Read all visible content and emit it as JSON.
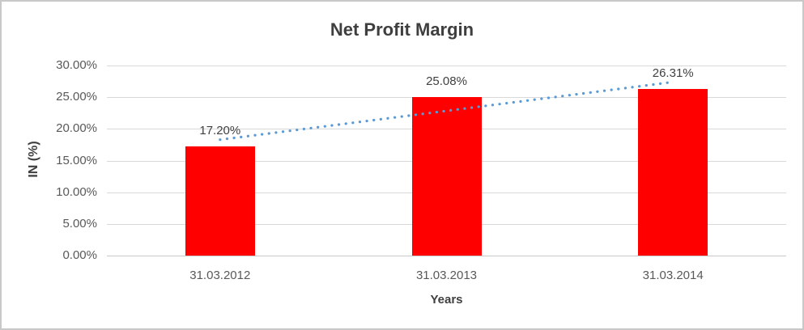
{
  "chart_data": {
    "type": "bar",
    "title": "Net Profit Margin",
    "xlabel": "Years",
    "ylabel": "IN (%)",
    "categories": [
      "31.03.2012",
      "31.03.2013",
      "31.03.2014"
    ],
    "values": [
      17.2,
      25.08,
      26.31
    ],
    "data_labels": [
      "17.20%",
      "25.08%",
      "26.31%"
    ],
    "ylim": [
      0,
      30
    ],
    "ytick_step": 5,
    "ytick_labels": [
      "0.00%",
      "5.00%",
      "10.00%",
      "15.00%",
      "20.00%",
      "25.00%",
      "30.00%"
    ],
    "grid": true,
    "legend": "none",
    "bar_color": "#FF0000",
    "trendline": {
      "type": "linear",
      "style": "dotted",
      "color": "#5B9BD5",
      "start_value": 18.3,
      "end_value": 27.4
    },
    "colors": {
      "title_text": "#3F3F3F",
      "axis_tick_text": "#595959",
      "data_label_text": "#404040",
      "gridline": "#D9D9D9",
      "axis_line": "#C9C9C9",
      "background": "#FFFFFF",
      "canvas_border": "#C8C8C8"
    }
  }
}
